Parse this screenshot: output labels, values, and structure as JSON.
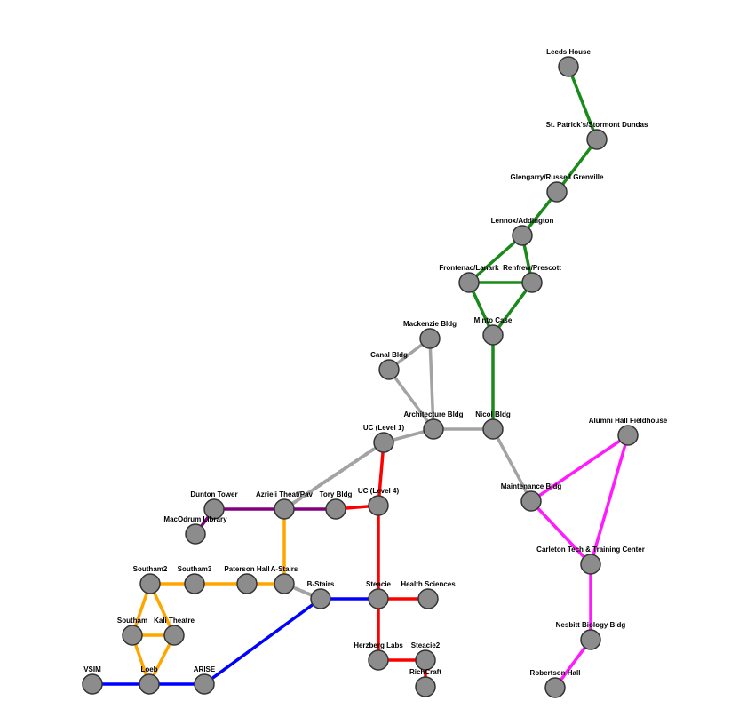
{
  "colors": {
    "green": "#1a8a1a",
    "gray": "#a3a3a3",
    "magenta": "#ff1aff",
    "red": "#ff0000",
    "purple": "#800080",
    "orange": "#ffa500",
    "blue": "#0000ff",
    "dotted": "#a3a3a3",
    "node_fill": "#8c8c8c",
    "node_stroke": "#333333"
  },
  "nodes": [
    {
      "id": "leeds",
      "label": "Leeds House"
    },
    {
      "id": "stpat",
      "label": "St. Patrick's/Stormont Dundas"
    },
    {
      "id": "glen",
      "label": "Glengarry/Russell Grenville"
    },
    {
      "id": "lennox",
      "label": "Lennox/Addington"
    },
    {
      "id": "frontenac",
      "label": "Frontenac/Lanark"
    },
    {
      "id": "renfrew",
      "label": "Renfrew/Prescott"
    },
    {
      "id": "minto",
      "label": "Minto Case"
    },
    {
      "id": "mackenzie",
      "label": "Mackenzie Bldg"
    },
    {
      "id": "canal",
      "label": "Canal Bldg"
    },
    {
      "id": "arch",
      "label": "Architecture Bldg"
    },
    {
      "id": "nicol",
      "label": "Nicol Bldg"
    },
    {
      "id": "uc1",
      "label": "UC (Level 1)"
    },
    {
      "id": "alumni",
      "label": "Alumni Hall Fieldhouse"
    },
    {
      "id": "maint",
      "label": "Maintenance Bldg"
    },
    {
      "id": "carleton",
      "label": "Carleton Tech & Training Center"
    },
    {
      "id": "nesbitt",
      "label": "Nesbitt Biology Bldg"
    },
    {
      "id": "robertson",
      "label": "Robertson Hall"
    },
    {
      "id": "dunton",
      "label": "Dunton Tower"
    },
    {
      "id": "azrieli",
      "label": "Azrieli Theat/Pav"
    },
    {
      "id": "tory",
      "label": "Tory Bldg"
    },
    {
      "id": "uc4",
      "label": "UC (Level 4)"
    },
    {
      "id": "macodrum",
      "label": "MacOdrum Library"
    },
    {
      "id": "southam2",
      "label": "Southam2"
    },
    {
      "id": "southam3",
      "label": "Southam3"
    },
    {
      "id": "paterson",
      "label": "Paterson Hall"
    },
    {
      "id": "astairs",
      "label": "A-Stairs"
    },
    {
      "id": "bstairs",
      "label": "B-Stairs"
    },
    {
      "id": "steacie",
      "label": "Steacie"
    },
    {
      "id": "health",
      "label": "Health Sciences"
    },
    {
      "id": "southam",
      "label": "Southam"
    },
    {
      "id": "kalitheatre",
      "label": "Kali Theatre"
    },
    {
      "id": "herzberg",
      "label": "Herzberg Labs"
    },
    {
      "id": "steacie2",
      "label": "Steacie2"
    },
    {
      "id": "richcraft",
      "label": "RichCraft"
    },
    {
      "id": "vsim",
      "label": "VSIM"
    },
    {
      "id": "loeb",
      "label": "Loeb"
    },
    {
      "id": "arise",
      "label": "ARISE"
    }
  ],
  "edges": [
    {
      "source": "leeds",
      "target": "stpat",
      "color": "green"
    },
    {
      "source": "stpat",
      "target": "glen",
      "color": "green"
    },
    {
      "source": "glen",
      "target": "lennox",
      "color": "green"
    },
    {
      "source": "lennox",
      "target": "frontenac",
      "color": "green"
    },
    {
      "source": "lennox",
      "target": "renfrew",
      "color": "green"
    },
    {
      "source": "frontenac",
      "target": "renfrew",
      "color": "green"
    },
    {
      "source": "frontenac",
      "target": "minto",
      "color": "green"
    },
    {
      "source": "renfrew",
      "target": "minto",
      "color": "green"
    },
    {
      "source": "minto",
      "target": "nicol",
      "color": "green"
    },
    {
      "source": "mackenzie",
      "target": "canal",
      "color": "gray"
    },
    {
      "source": "mackenzie",
      "target": "arch",
      "color": "gray"
    },
    {
      "source": "canal",
      "target": "arch",
      "color": "gray"
    },
    {
      "source": "arch",
      "target": "nicol",
      "color": "gray"
    },
    {
      "source": "arch",
      "target": "uc1",
      "color": "gray"
    },
    {
      "source": "nicol",
      "target": "maint",
      "color": "gray"
    },
    {
      "source": "maint",
      "target": "alumni",
      "color": "magenta"
    },
    {
      "source": "alumni",
      "target": "carleton",
      "color": "magenta"
    },
    {
      "source": "maint",
      "target": "carleton",
      "color": "magenta"
    },
    {
      "source": "carleton",
      "target": "nesbitt",
      "color": "magenta"
    },
    {
      "source": "nesbitt",
      "target": "robertson",
      "color": "magenta"
    },
    {
      "source": "uc1",
      "target": "azrieli",
      "color": "dotted",
      "dashed": true
    },
    {
      "source": "uc1",
      "target": "uc4",
      "color": "red"
    },
    {
      "source": "tory",
      "target": "uc4",
      "color": "red"
    },
    {
      "source": "uc4",
      "target": "steacie",
      "color": "red"
    },
    {
      "source": "steacie",
      "target": "health",
      "color": "red"
    },
    {
      "source": "steacie",
      "target": "herzberg",
      "color": "red"
    },
    {
      "source": "herzberg",
      "target": "steacie2",
      "color": "red"
    },
    {
      "source": "steacie2",
      "target": "richcraft",
      "color": "red"
    },
    {
      "source": "dunton",
      "target": "azrieli",
      "color": "purple"
    },
    {
      "source": "azrieli",
      "target": "tory",
      "color": "purple"
    },
    {
      "source": "dunton",
      "target": "macodrum",
      "color": "purple"
    },
    {
      "source": "azrieli",
      "target": "astairs",
      "color": "orange"
    },
    {
      "source": "southam2",
      "target": "southam3",
      "color": "orange"
    },
    {
      "source": "southam3",
      "target": "paterson",
      "color": "orange"
    },
    {
      "source": "paterson",
      "target": "astairs",
      "color": "orange"
    },
    {
      "source": "southam2",
      "target": "southam",
      "color": "orange"
    },
    {
      "source": "southam2",
      "target": "kalitheatre",
      "color": "orange"
    },
    {
      "source": "southam",
      "target": "kalitheatre",
      "color": "orange"
    },
    {
      "source": "southam",
      "target": "loeb",
      "color": "orange"
    },
    {
      "source": "kalitheatre",
      "target": "loeb",
      "color": "orange"
    },
    {
      "source": "astairs",
      "target": "bstairs",
      "color": "dotted",
      "dashed": true
    },
    {
      "source": "bstairs",
      "target": "steacie",
      "color": "blue"
    },
    {
      "source": "bstairs",
      "target": "arise",
      "color": "blue"
    },
    {
      "source": "vsim",
      "target": "loeb",
      "color": "blue"
    },
    {
      "source": "loeb",
      "target": "arise",
      "color": "blue"
    }
  ]
}
